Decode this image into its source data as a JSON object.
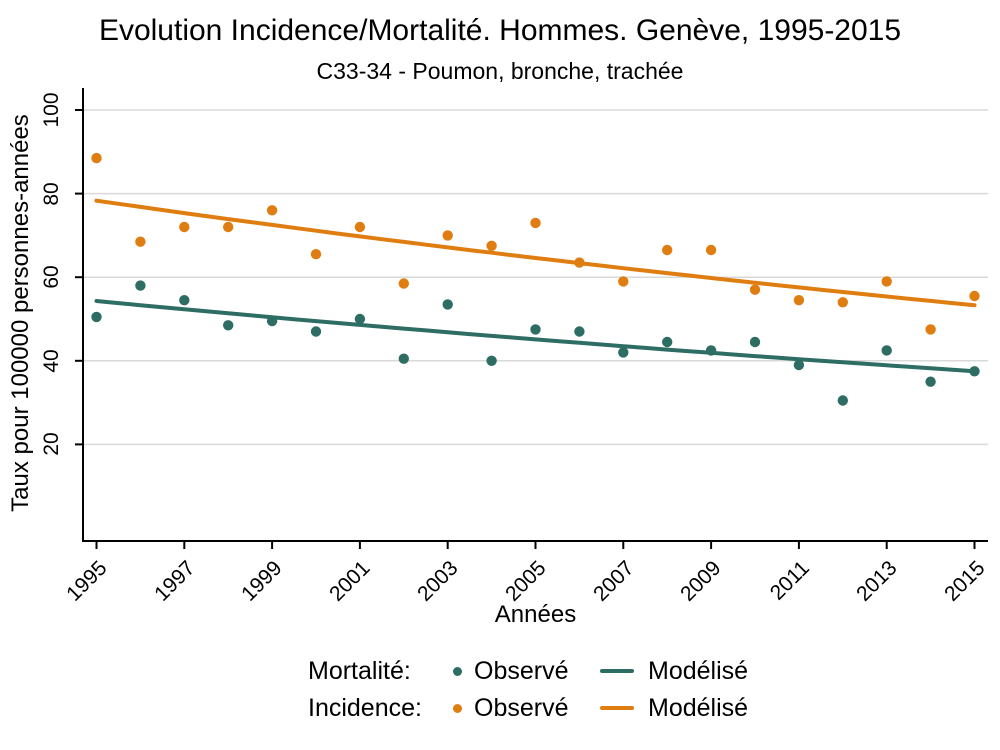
{
  "title": "Evolution Incidence/Mortalité. Hommes. Genève, 1995-2015",
  "subtitle": "C33-34 - Poumon, bronche, trachée",
  "axes": {
    "x_label": "Années",
    "y_label": "Taux pour 100000 personnes-années"
  },
  "colors": {
    "incidence": "#df7d10",
    "mortality": "#2d6d63",
    "grid": "#d9d9d9",
    "axis": "#000000"
  },
  "legend": {
    "rows": [
      {
        "series": "Mortalité:",
        "observed_label": "Observé",
        "modeled_label": "Modélisé",
        "color_key": "mortality"
      },
      {
        "series": "Incidence:",
        "observed_label": "Observé",
        "modeled_label": "Modélisé",
        "color_key": "incidence"
      }
    ]
  },
  "chart_data": {
    "type": "scatter",
    "title": "Evolution Incidence/Mortalité. Hommes. Genève, 1995-2015",
    "subtitle": "C33-34 - Poumon, bronche, trachée",
    "xlabel": "Années",
    "ylabel": "Taux pour 100000 personnes-années",
    "grid": "horizontal-only",
    "legend_position": "bottom",
    "years": [
      1995,
      1996,
      1997,
      1998,
      1999,
      2000,
      2001,
      2002,
      2003,
      2004,
      2005,
      2006,
      2007,
      2008,
      2009,
      2010,
      2011,
      2012,
      2013,
      2014,
      2015
    ],
    "x_ticks": [
      1995,
      1997,
      1999,
      2001,
      2003,
      2005,
      2007,
      2009,
      2011,
      2013,
      2015
    ],
    "y_ticks": [
      20,
      40,
      60,
      80,
      100
    ],
    "ylim": [
      -3,
      105
    ],
    "series": [
      {
        "name": "Mortalité Observé",
        "type": "points",
        "color_key": "mortality",
        "values": [
          50.5,
          58,
          54.5,
          48.5,
          49.5,
          47,
          50,
          40.5,
          53.5,
          40,
          47.5,
          47,
          42,
          44.5,
          42.5,
          44.5,
          39,
          30.5,
          42.5,
          35,
          37.5
        ]
      },
      {
        "name": "Incidence Observé",
        "type": "points",
        "color_key": "incidence",
        "values": [
          88.5,
          68.5,
          72,
          72,
          76,
          65.5,
          72,
          58.5,
          70,
          67.5,
          73,
          63.5,
          59,
          66.5,
          66.5,
          57,
          54.5,
          54,
          59,
          47.5,
          55.5
        ]
      },
      {
        "name": "Mortalité Modélisé",
        "type": "trend-line",
        "color_key": "mortality",
        "fit": "exponential",
        "start_year": 1995,
        "end_year": 2015,
        "start_value": 54.3,
        "end_value": 37.5
      },
      {
        "name": "Incidence Modélisé",
        "type": "trend-line",
        "color_key": "incidence",
        "fit": "exponential",
        "start_year": 1995,
        "end_year": 2015,
        "start_value": 78.3,
        "end_value": 53.3
      }
    ]
  }
}
